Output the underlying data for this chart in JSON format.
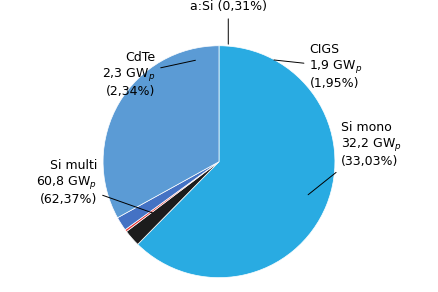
{
  "slices": [
    {
      "label": "Si multi\n60,8 GWₕ\n(62,37%)",
      "value": 62.37,
      "color": "#29ABE2",
      "label_pos": "left"
    },
    {
      "label": "CdTe\n2,3 GWₕ\n(2,34%)",
      "value": 2.34,
      "color": "#1C1C1C",
      "label_pos": "left"
    },
    {
      "label": "a:Si (0,31%)",
      "value": 0.31,
      "color": "#E83030",
      "label_pos": "top"
    },
    {
      "label": "CIGS\n1,9 GWₕ\n(1,95%)",
      "value": 1.95,
      "color": "#4472C4",
      "label_pos": "right"
    },
    {
      "label": "Si mono\n32,2 GWₕ\n(33,03%)",
      "value": 33.03,
      "color": "#5B9BD5",
      "label_pos": "right"
    }
  ],
  "background_color": "#FFFFFF",
  "font_size": 9,
  "startangle": 90
}
